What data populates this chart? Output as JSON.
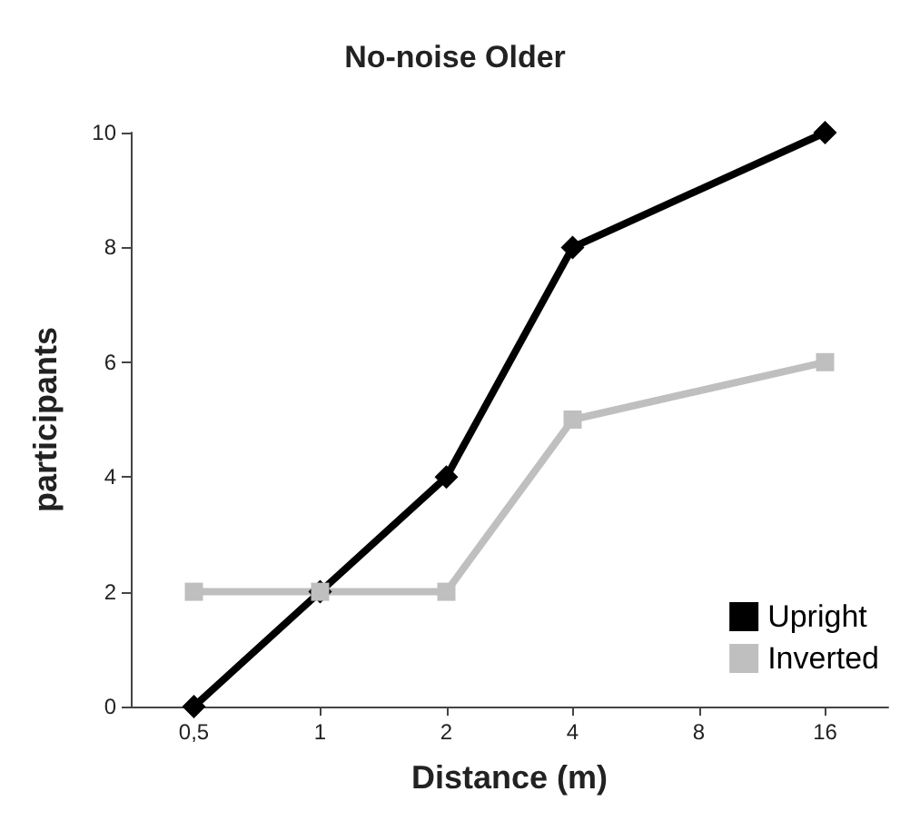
{
  "chart_data": {
    "type": "line",
    "title": "No-noise Older",
    "xlabel": "Distance (m)",
    "ylabel": "participants",
    "categories": [
      "0,5",
      "1",
      "2",
      "4",
      "8",
      "16"
    ],
    "series": [
      {
        "name": "Upright",
        "color": "#000000",
        "marker": "diamond",
        "values": [
          0,
          2,
          4,
          8,
          null,
          10
        ]
      },
      {
        "name": "Inverted",
        "color": "#bfbfbf",
        "marker": "square",
        "values": [
          2,
          2,
          2,
          5,
          null,
          6
        ]
      }
    ],
    "ylim": [
      0,
      10
    ],
    "yticks": [
      0,
      2,
      4,
      6,
      8,
      10
    ],
    "grid": false,
    "legend": "bottom right",
    "line_style": "solid"
  }
}
